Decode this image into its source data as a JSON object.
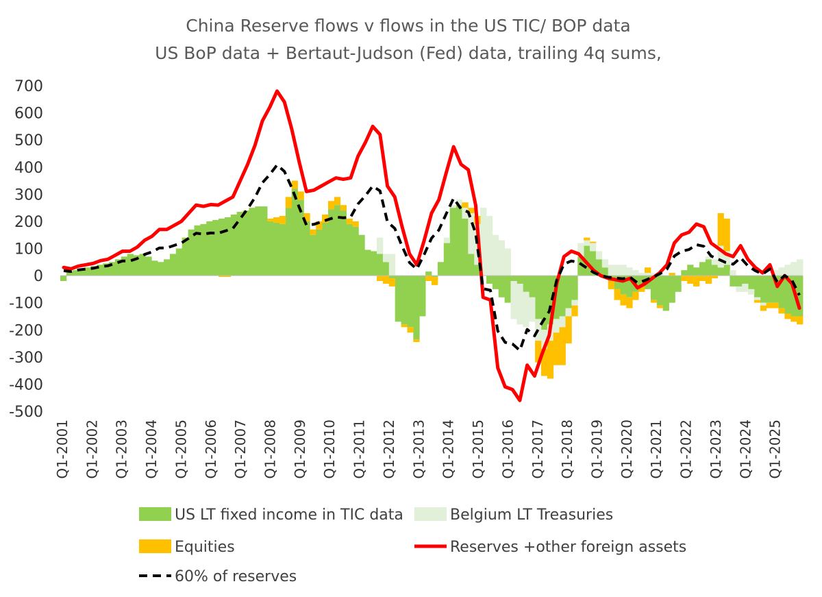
{
  "chart_data": {
    "type": "bar",
    "title": "China Reserve flows v flows in the US TIC/ BOP data",
    "subtitle": "US BoP data + Bertaut-Judson (Fed) data, trailing 4q sums,",
    "ylim": [
      -500,
      700
    ],
    "yticks": [
      700,
      600,
      500,
      400,
      300,
      200,
      100,
      0,
      -100,
      -200,
      -300,
      -400,
      -500
    ],
    "x_labels": [
      "Q1-2001",
      "Q1-2002",
      "Q1-2003",
      "Q1-2004",
      "Q1-2005",
      "Q1-2006",
      "Q1-2007",
      "Q1-2008",
      "Q1-2009",
      "Q1-2010",
      "Q1-2011",
      "Q1-2012",
      "Q1-2013",
      "Q1-2014",
      "Q1-2015",
      "Q1-2016",
      "Q1-2017",
      "Q1-2018",
      "Q1-2019",
      "Q1-2020",
      "Q1-2021",
      "Q1-2022",
      "Q1-2023",
      "Q1-2024",
      "Q1-2025"
    ],
    "grid": false,
    "legend_position": "bottom",
    "stacked_bars": true,
    "colors": {
      "us_lt": "#92d050",
      "belgium": "#e2efd9",
      "equities": "#ffc000",
      "reserves": "#ff0000",
      "sixty": "#000000"
    },
    "series": [
      {
        "name": "US LT fixed income in TIC data",
        "kind": "bar",
        "values": [
          -20,
          15,
          20,
          25,
          30,
          35,
          40,
          45,
          50,
          60,
          70,
          80,
          75,
          80,
          70,
          55,
          50,
          60,
          80,
          100,
          140,
          170,
          185,
          190,
          200,
          205,
          210,
          215,
          225,
          235,
          240,
          250,
          255,
          255,
          200,
          195,
          190,
          250,
          320,
          280,
          200,
          150,
          170,
          195,
          245,
          260,
          240,
          190,
          180,
          150,
          95,
          90,
          80,
          50,
          -10,
          -170,
          -180,
          -190,
          -235,
          -150,
          15,
          -5,
          50,
          120,
          250,
          260,
          210,
          80,
          40,
          0,
          -30,
          -50,
          -80,
          -100,
          -20,
          -30,
          -60,
          -80,
          -160,
          -200,
          -180,
          -160,
          -150,
          -120,
          -90,
          70,
          110,
          90,
          60,
          30,
          -20,
          -50,
          -70,
          -80,
          -60,
          -40,
          -50,
          -90,
          -110,
          -130,
          -100,
          -60,
          20,
          40,
          30,
          50,
          60,
          40,
          30,
          40,
          -40,
          -40,
          -30,
          -50,
          -80,
          -100,
          -100,
          -100,
          -120,
          -140,
          -150,
          -150
        ]
      },
      {
        "name": "Belgium LT Treasuries",
        "kind": "bar",
        "values": [
          0,
          0,
          0,
          0,
          0,
          0,
          0,
          0,
          0,
          0,
          0,
          0,
          0,
          0,
          0,
          0,
          0,
          0,
          0,
          0,
          0,
          0,
          0,
          0,
          0,
          0,
          0,
          0,
          0,
          0,
          0,
          0,
          0,
          0,
          0,
          0,
          0,
          0,
          0,
          0,
          0,
          0,
          0,
          0,
          0,
          0,
          0,
          0,
          0,
          0,
          0,
          0,
          60,
          30,
          80,
          0,
          0,
          0,
          0,
          0,
          0,
          0,
          0,
          20,
          10,
          20,
          40,
          150,
          150,
          250,
          220,
          150,
          130,
          100,
          -140,
          -150,
          -130,
          -90,
          -80,
          -70,
          -60,
          -50,
          -40,
          -30,
          -20,
          50,
          20,
          30,
          30,
          30,
          40,
          40,
          40,
          30,
          20,
          10,
          10,
          10,
          5,
          0,
          0,
          0,
          0,
          0,
          0,
          0,
          10,
          20,
          80,
          50,
          20,
          -20,
          -30,
          -20,
          -10,
          -10,
          0,
          20,
          30,
          40,
          50,
          60,
          70,
          80
        ]
      },
      {
        "name": "Equities",
        "kind": "bar",
        "values": [
          0,
          0,
          0,
          0,
          0,
          0,
          0,
          0,
          0,
          0,
          0,
          0,
          0,
          0,
          0,
          0,
          0,
          0,
          0,
          0,
          0,
          0,
          0,
          0,
          0,
          0,
          -5,
          -5,
          0,
          0,
          0,
          0,
          0,
          0,
          10,
          20,
          30,
          40,
          30,
          30,
          30,
          20,
          30,
          30,
          30,
          30,
          20,
          20,
          20,
          0,
          0,
          0,
          -20,
          -30,
          -30,
          0,
          -10,
          -20,
          -10,
          0,
          -20,
          -30,
          0,
          0,
          0,
          0,
          20,
          20,
          30,
          0,
          0,
          0,
          0,
          0,
          0,
          0,
          0,
          0,
          -80,
          -100,
          -140,
          -120,
          -140,
          -100,
          -40,
          0,
          10,
          5,
          0,
          0,
          -30,
          -40,
          -40,
          -40,
          -30,
          -20,
          20,
          -10,
          -10,
          0,
          10,
          0,
          -20,
          -30,
          -40,
          -20,
          -30,
          -10,
          120,
          120,
          0,
          0,
          0,
          0,
          -10,
          -20,
          -20,
          -20,
          -20,
          -20,
          -20,
          -30,
          -30,
          -40
        ]
      },
      {
        "name": "Reserves +other foreign assets",
        "kind": "line",
        "values": [
          30,
          25,
          35,
          40,
          45,
          55,
          60,
          75,
          90,
          90,
          105,
          130,
          145,
          170,
          170,
          185,
          200,
          230,
          260,
          255,
          262,
          260,
          275,
          290,
          350,
          410,
          480,
          570,
          620,
          680,
          640,
          540,
          420,
          310,
          315,
          330,
          345,
          360,
          355,
          360,
          440,
          490,
          550,
          520,
          330,
          290,
          180,
          80,
          40,
          130,
          230,
          280,
          380,
          475,
          410,
          390,
          260,
          -80,
          -90,
          -340,
          -410,
          -420,
          -460,
          -330,
          -370,
          -290,
          -220,
          -30,
          70,
          90,
          80,
          50,
          20,
          0,
          -10,
          -15,
          -20,
          -10,
          -45,
          -30,
          -10,
          10,
          40,
          120,
          150,
          160,
          190,
          180,
          120,
          100,
          80,
          70,
          110,
          60,
          30,
          10,
          40,
          -40,
          0,
          -30,
          -120
        ]
      },
      {
        "name": "60% of reserves",
        "kind": "dashed-line",
        "values": [
          18,
          15,
          21,
          24,
          27,
          33,
          36,
          45,
          54,
          54,
          63,
          78,
          87,
          102,
          102,
          111,
          120,
          138,
          156,
          153,
          157,
          156,
          165,
          174,
          210,
          246,
          288,
          342,
          372,
          408,
          384,
          324,
          252,
          186,
          189,
          198,
          207,
          216,
          213,
          216,
          264,
          294,
          330,
          312,
          198,
          174,
          108,
          48,
          24,
          78,
          138,
          168,
          228,
          285,
          246,
          234,
          156,
          -48,
          -54,
          -204,
          -246,
          -252,
          -276,
          -198,
          -222,
          -174,
          -132,
          -18,
          42,
          54,
          48,
          30,
          12,
          0,
          -6,
          -9,
          -12,
          -6,
          -27,
          -18,
          -6,
          6,
          24,
          72,
          90,
          96,
          114,
          108,
          72,
          60,
          48,
          42,
          66,
          36,
          18,
          6,
          24,
          -24,
          0,
          -18,
          -72
        ]
      }
    ]
  }
}
